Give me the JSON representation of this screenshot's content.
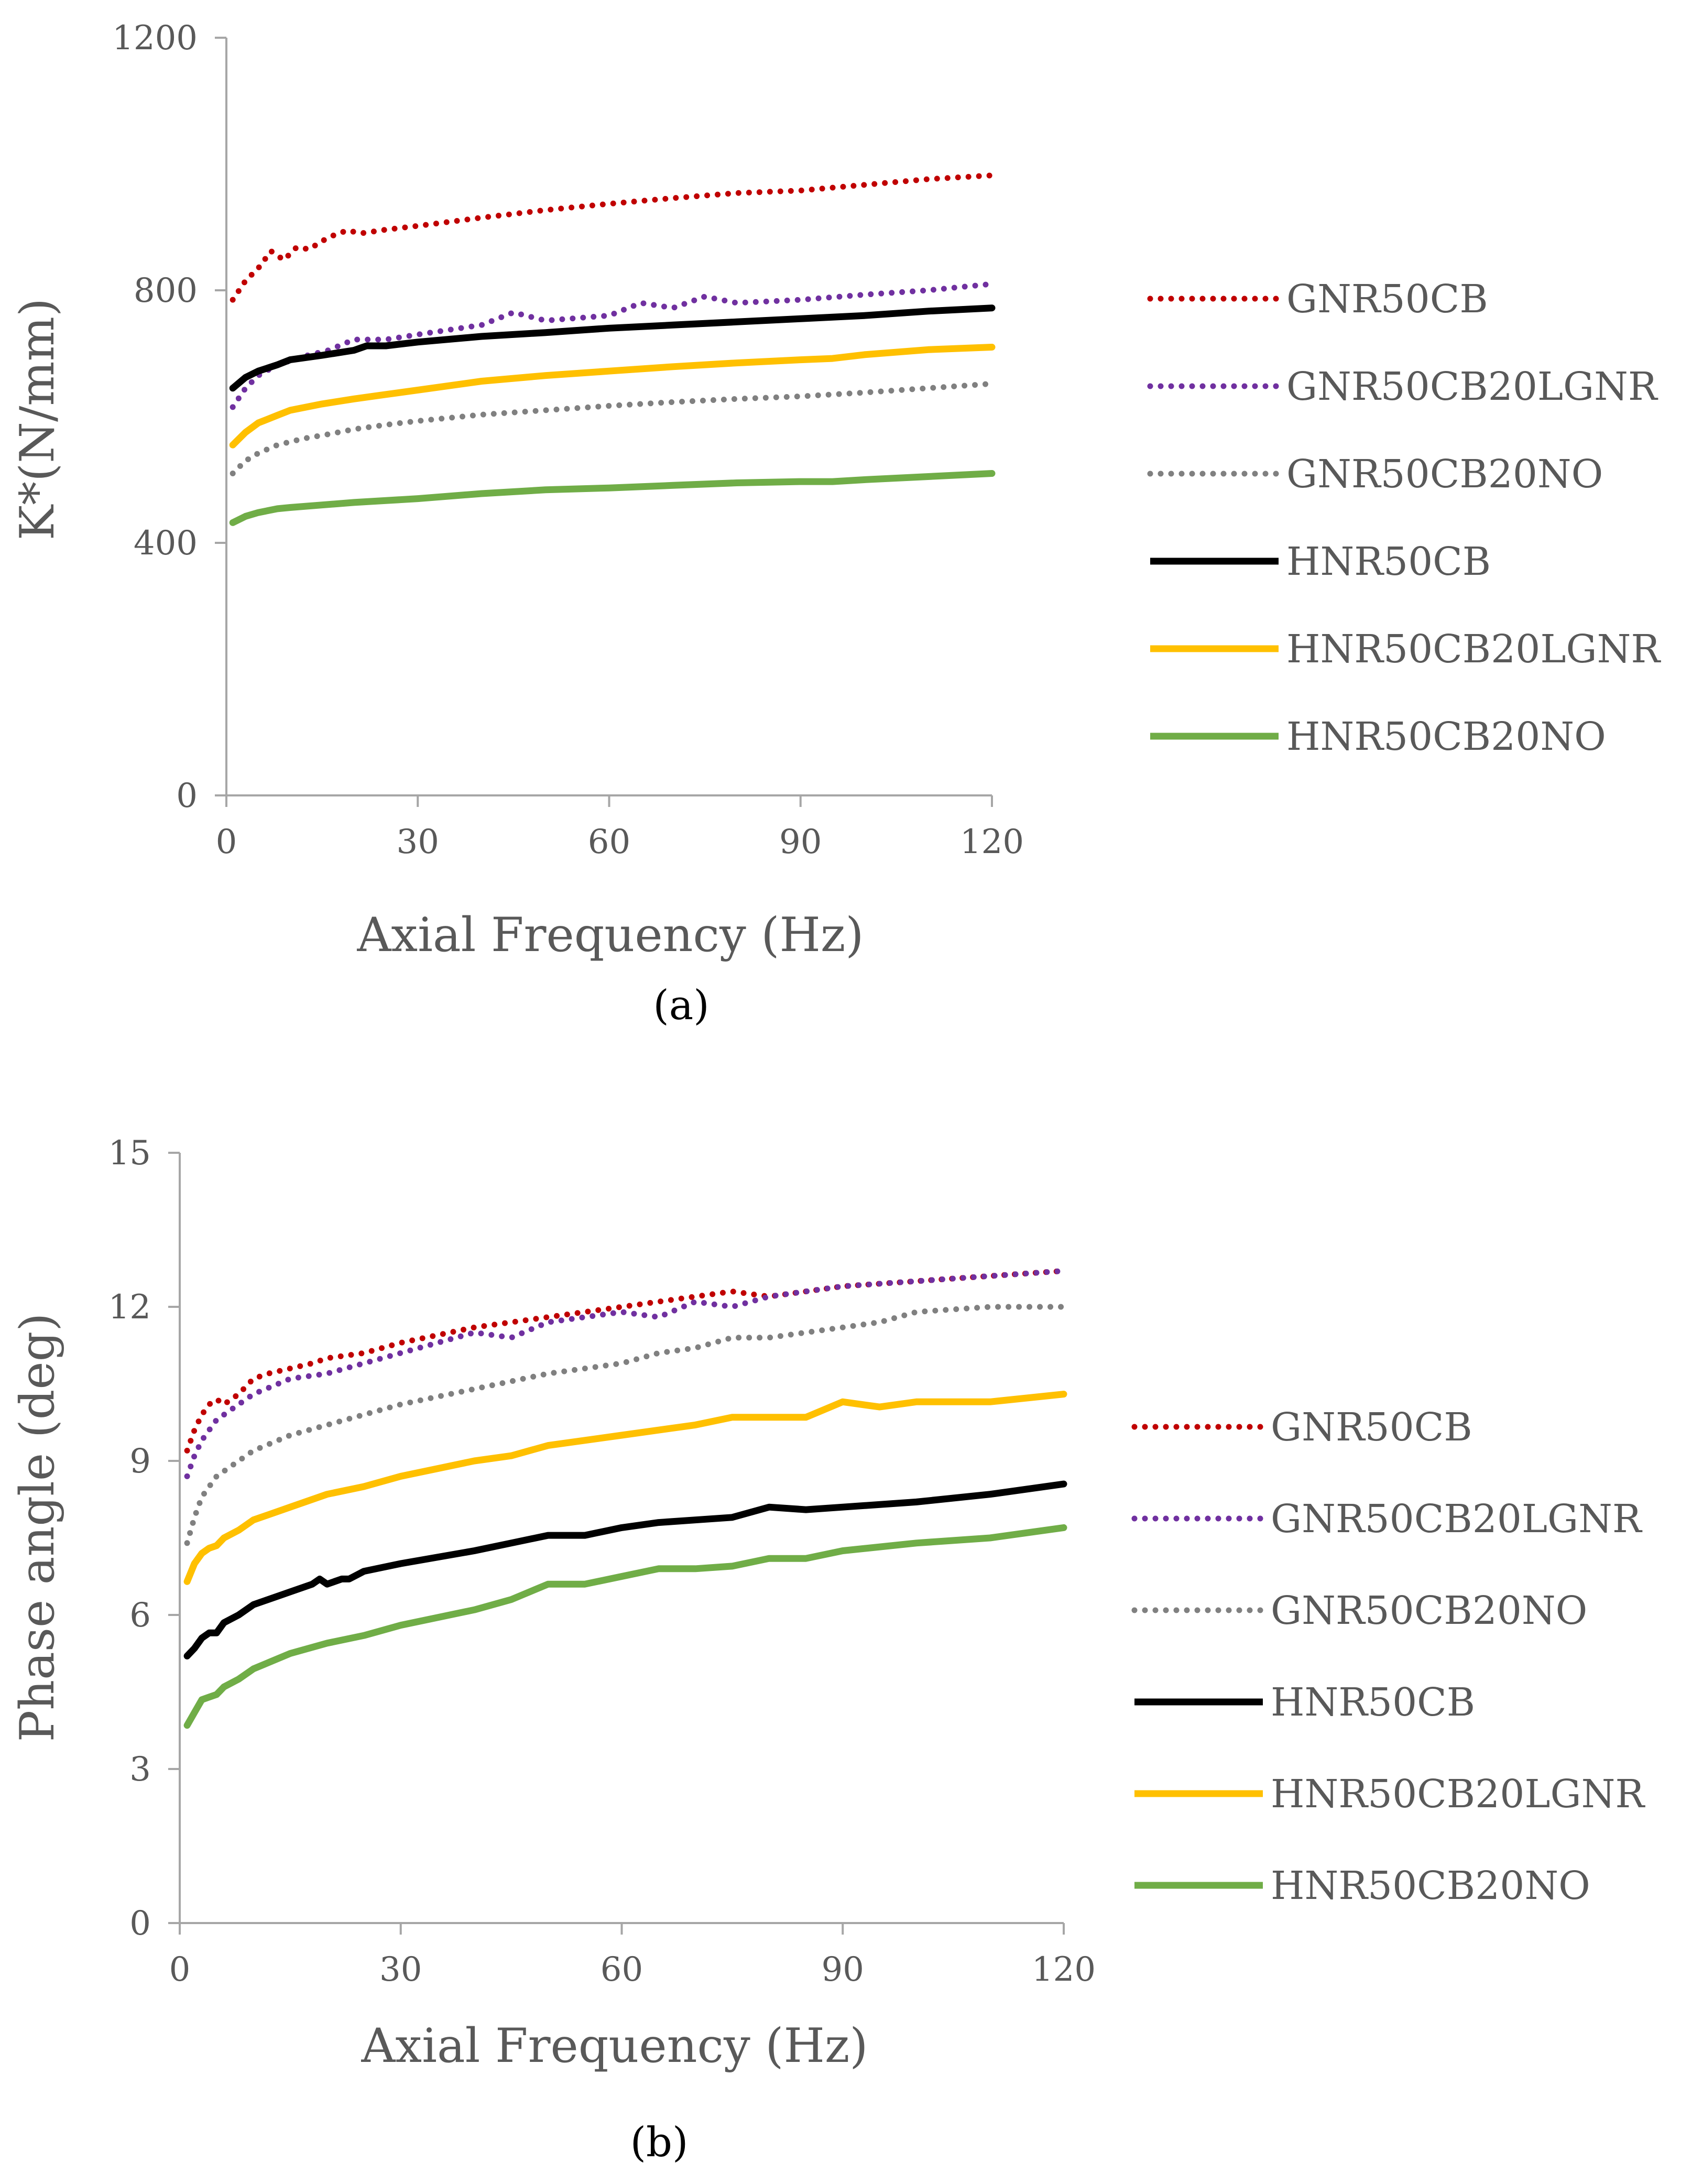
{
  "chart_data": [
    {
      "type": "line",
      "panel_label": "(a)",
      "xlabel": "Axial Frequency (Hz)",
      "ylabel": "K*(N/mm)",
      "xlim": [
        0,
        120
      ],
      "ylim": [
        0,
        1200
      ],
      "x_ticks": [
        "0",
        "30",
        "60",
        "90",
        "120"
      ],
      "y_ticks": [
        "0",
        "400",
        "800",
        "1200"
      ],
      "grid": false,
      "legend_position": "right",
      "series": [
        {
          "name": "GNR50CB",
          "color": "#c00000",
          "style": "dotted",
          "x": [
            1,
            3,
            5,
            7,
            9,
            11,
            13,
            15,
            17,
            19,
            21,
            25,
            30,
            40,
            50,
            60,
            70,
            80,
            90,
            100,
            110,
            120
          ],
          "y": [
            785,
            815,
            835,
            862,
            848,
            868,
            865,
            878,
            888,
            895,
            890,
            896,
            902,
            915,
            927,
            937,
            946,
            954,
            958,
            967,
            976,
            982
          ]
        },
        {
          "name": "GNR50CB20LGNR",
          "color": "#7030a0",
          "style": "dotted",
          "x": [
            1,
            3,
            5,
            8,
            12,
            16,
            20,
            25,
            30,
            40,
            45,
            50,
            60,
            65,
            70,
            75,
            80,
            90,
            100,
            110,
            120
          ],
          "y": [
            615,
            645,
            665,
            682,
            695,
            705,
            722,
            722,
            730,
            745,
            765,
            752,
            760,
            780,
            772,
            790,
            780,
            785,
            793,
            800,
            810
          ]
        },
        {
          "name": "GNR50CB20NO",
          "color": "#808080",
          "style": "dotted",
          "x": [
            1,
            3,
            5,
            8,
            12,
            16,
            20,
            25,
            30,
            40,
            50,
            60,
            70,
            80,
            90,
            100,
            110,
            120
          ],
          "y": [
            510,
            530,
            542,
            555,
            565,
            572,
            580,
            587,
            593,
            603,
            610,
            617,
            623,
            628,
            632,
            638,
            645,
            652
          ]
        },
        {
          "name": "HNR50CB",
          "color": "#000000",
          "style": "solid",
          "x": [
            1,
            3,
            5,
            8,
            10,
            15,
            20,
            22,
            25,
            30,
            40,
            50,
            60,
            70,
            80,
            90,
            100,
            110,
            120
          ],
          "y": [
            645,
            662,
            672,
            682,
            690,
            697,
            705,
            712,
            712,
            718,
            727,
            733,
            740,
            745,
            750,
            755,
            760,
            767,
            772
          ]
        },
        {
          "name": "HNR50CB20LGNR",
          "color": "#ffc000",
          "style": "solid",
          "x": [
            1,
            3,
            5,
            8,
            10,
            15,
            20,
            25,
            30,
            40,
            50,
            60,
            70,
            80,
            90,
            95,
            100,
            110,
            120
          ],
          "y": [
            555,
            575,
            590,
            602,
            610,
            620,
            628,
            635,
            642,
            656,
            665,
            672,
            679,
            685,
            690,
            692,
            698,
            706,
            710
          ]
        },
        {
          "name": "HNR50CB20NO",
          "color": "#70ad47",
          "style": "solid",
          "x": [
            1,
            3,
            5,
            8,
            10,
            15,
            20,
            25,
            30,
            40,
            50,
            60,
            70,
            80,
            90,
            95,
            100,
            110,
            120
          ],
          "y": [
            432,
            442,
            448,
            454,
            456,
            460,
            464,
            467,
            470,
            478,
            484,
            487,
            491,
            495,
            497,
            497,
            500,
            505,
            510
          ]
        }
      ]
    },
    {
      "type": "line",
      "panel_label": "(b)",
      "xlabel": "Axial Frequency (Hz)",
      "ylabel": "Phase angle (deg)",
      "xlim": [
        0,
        120
      ],
      "ylim": [
        0,
        15
      ],
      "x_ticks": [
        "0",
        "30",
        "60",
        "90",
        "120"
      ],
      "y_ticks": [
        "0",
        "3",
        "6",
        "9",
        "12",
        "15"
      ],
      "grid": false,
      "legend_position": "right",
      "series": [
        {
          "name": "GNR50CB",
          "color": "#c00000",
          "style": "dotted",
          "x": [
            1,
            2,
            3,
            4,
            5,
            6,
            8,
            10,
            12,
            15,
            18,
            20,
            25,
            30,
            40,
            50,
            60,
            70,
            75,
            80,
            90,
            100,
            110,
            120
          ],
          "y": [
            9.2,
            9.6,
            9.9,
            10.1,
            10.2,
            10.1,
            10.3,
            10.6,
            10.7,
            10.8,
            10.9,
            11.0,
            11.1,
            11.3,
            11.6,
            11.8,
            12.0,
            12.2,
            12.3,
            12.2,
            12.4,
            12.5,
            12.6,
            12.7
          ]
        },
        {
          "name": "GNR50CB20LGNR",
          "color": "#7030a0",
          "style": "dotted",
          "x": [
            1,
            2,
            3,
            4,
            5,
            6,
            8,
            10,
            15,
            20,
            25,
            30,
            40,
            45,
            50,
            60,
            65,
            70,
            75,
            80,
            90,
            100,
            110,
            120
          ],
          "y": [
            8.7,
            9.1,
            9.4,
            9.6,
            9.8,
            9.9,
            10.1,
            10.3,
            10.6,
            10.7,
            10.9,
            11.1,
            11.5,
            11.4,
            11.7,
            11.9,
            11.8,
            12.1,
            12.0,
            12.2,
            12.4,
            12.5,
            12.6,
            12.7
          ]
        },
        {
          "name": "GNR50CB20NO",
          "color": "#808080",
          "style": "dotted",
          "x": [
            1,
            2,
            3,
            5,
            8,
            10,
            15,
            20,
            25,
            30,
            40,
            50,
            60,
            65,
            70,
            75,
            80,
            90,
            95,
            100,
            110,
            120
          ],
          "y": [
            7.4,
            7.9,
            8.3,
            8.7,
            9.0,
            9.2,
            9.5,
            9.7,
            9.9,
            10.1,
            10.4,
            10.7,
            10.9,
            11.1,
            11.2,
            11.4,
            11.4,
            11.6,
            11.7,
            11.9,
            12.0,
            12.0
          ]
        },
        {
          "name": "HNR50CB",
          "color": "#000000",
          "style": "solid",
          "x": [
            1,
            2,
            3,
            4,
            5,
            6,
            8,
            10,
            15,
            18,
            19,
            20,
            22,
            23,
            25,
            30,
            40,
            45,
            50,
            55,
            60,
            65,
            70,
            75,
            80,
            85,
            90,
            100,
            110,
            120
          ],
          "y": [
            5.2,
            5.35,
            5.55,
            5.65,
            5.65,
            5.85,
            6.0,
            6.2,
            6.45,
            6.6,
            6.7,
            6.6,
            6.7,
            6.7,
            6.85,
            7.0,
            7.25,
            7.4,
            7.55,
            7.55,
            7.7,
            7.8,
            7.85,
            7.9,
            8.1,
            8.05,
            8.1,
            8.2,
            8.35,
            8.55
          ]
        },
        {
          "name": "HNR50CB20LGNR",
          "color": "#ffc000",
          "style": "solid",
          "x": [
            1,
            2,
            3,
            4,
            5,
            6,
            8,
            10,
            15,
            20,
            25,
            30,
            40,
            45,
            50,
            60,
            70,
            75,
            80,
            85,
            90,
            95,
            100,
            110,
            120
          ],
          "y": [
            6.65,
            7.0,
            7.2,
            7.3,
            7.35,
            7.5,
            7.65,
            7.85,
            8.1,
            8.35,
            8.5,
            8.7,
            9.0,
            9.1,
            9.3,
            9.5,
            9.7,
            9.85,
            9.85,
            9.85,
            10.15,
            10.05,
            10.15,
            10.15,
            10.3
          ]
        },
        {
          "name": "HNR50CB20NO",
          "color": "#70ad47",
          "style": "solid",
          "x": [
            1,
            2,
            3,
            4,
            5,
            6,
            8,
            10,
            15,
            20,
            25,
            30,
            40,
            45,
            50,
            55,
            60,
            65,
            70,
            75,
            80,
            85,
            90,
            100,
            110,
            120
          ],
          "y": [
            3.85,
            4.1,
            4.35,
            4.4,
            4.45,
            4.6,
            4.75,
            4.95,
            5.25,
            5.45,
            5.6,
            5.8,
            6.1,
            6.3,
            6.6,
            6.6,
            6.75,
            6.9,
            6.9,
            6.95,
            7.1,
            7.1,
            7.25,
            7.4,
            7.5,
            7.7
          ]
        }
      ]
    }
  ]
}
